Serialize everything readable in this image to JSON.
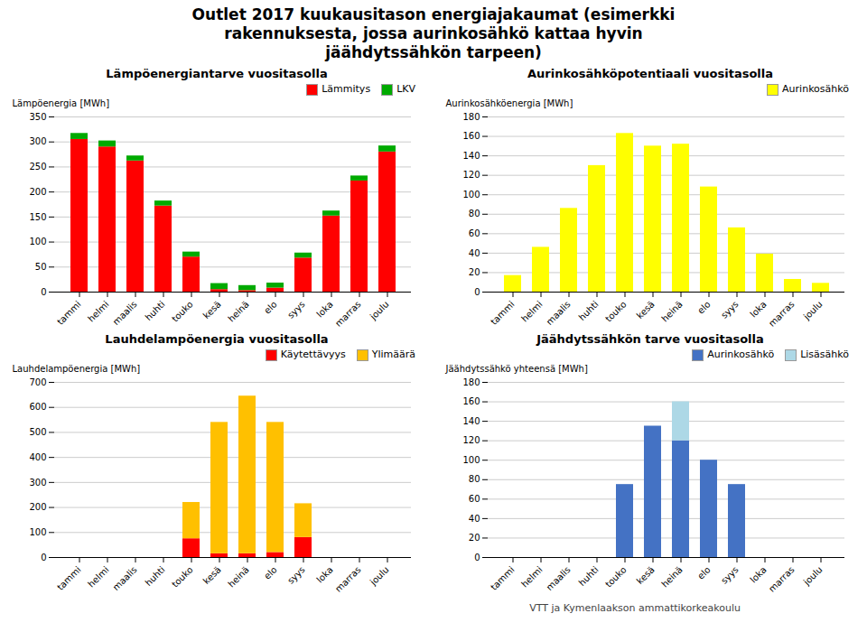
{
  "title": "Outlet 2017 kuukausitason energiajakaumat (esimerkki\nrakennuksesta, jossa aurinkosähkö kattaa hyvin\njäähdytssähkön tarpeen)",
  "caption": "VTT ja Kymenlaakson ammattikorkeakoulu",
  "chart_data": [
    {
      "type": "bar",
      "title": "Lämpöenergiantarve vuositasolla",
      "ylabel": "Lämpöenergia [MWh]",
      "categories": [
        "tammi",
        "helmi",
        "maalis",
        "huhti",
        "touko",
        "kesä",
        "heinä",
        "elo",
        "syys",
        "loka",
        "marras",
        "joulu"
      ],
      "series": [
        {
          "name": "Lämmitys",
          "color": "#FF0000",
          "values": [
            305,
            290,
            262,
            172,
            70,
            5,
            3,
            8,
            68,
            152,
            222,
            280
          ]
        },
        {
          "name": "LKV",
          "color": "#00AA00",
          "values": [
            12,
            12,
            10,
            10,
            10,
            12,
            10,
            10,
            10,
            10,
            10,
            12
          ]
        }
      ],
      "stacked": true,
      "ylim": [
        0,
        350
      ],
      "yticks": [
        0,
        50,
        100,
        150,
        200,
        250,
        300,
        350
      ],
      "grid": true,
      "legend": "upper right"
    },
    {
      "type": "bar",
      "title": "Aurinkosähköpotentiaali vuositasolla",
      "ylabel": "Aurinkosähköenergia [MWh]",
      "categories": [
        "tammi",
        "helmi",
        "maalis",
        "huhti",
        "touko",
        "kesä",
        "heinä",
        "elo",
        "syys",
        "loka",
        "marras",
        "joulu"
      ],
      "series": [
        {
          "name": "Aurinkosähkö",
          "color": "#FFFF00",
          "values": [
            17,
            46,
            86,
            130,
            163,
            150,
            152,
            108,
            66,
            39,
            13,
            9
          ]
        }
      ],
      "ylim": [
        0,
        180
      ],
      "yticks": [
        0,
        20,
        40,
        60,
        80,
        100,
        120,
        140,
        160,
        180
      ],
      "grid": true,
      "legend": "upper right"
    },
    {
      "type": "bar",
      "title": "Lauhdelampöenergia vuositasolla",
      "ylabel": "Lauhdelampöenergia [MWh]",
      "categories": [
        "tammi",
        "helmi",
        "maalis",
        "huhti",
        "touko",
        "kesä",
        "heinä",
        "elo",
        "syys",
        "loka",
        "marras",
        "joulu"
      ],
      "series": [
        {
          "name": "Käytettävyys",
          "color": "#FF0000",
          "values": [
            0,
            0,
            0,
            0,
            75,
            15,
            15,
            20,
            80,
            0,
            0,
            0
          ]
        },
        {
          "name": "Ylimäärä",
          "color": "#FFC000",
          "values": [
            0,
            0,
            0,
            0,
            145,
            525,
            630,
            520,
            135,
            0,
            0,
            0
          ]
        }
      ],
      "stacked": true,
      "ylim": [
        0,
        700
      ],
      "yticks": [
        0,
        100,
        200,
        300,
        400,
        500,
        600,
        700
      ],
      "grid": true,
      "legend": "upper right"
    },
    {
      "type": "bar",
      "title": "Jäähdytssähkön tarve vuositasolla",
      "ylabel": "Jäähdytssähkö yhteensä [MWh]",
      "categories": [
        "tammi",
        "helmi",
        "maalis",
        "huhti",
        "touko",
        "kesä",
        "heinä",
        "elo",
        "syys",
        "loka",
        "marras",
        "joulu"
      ],
      "series": [
        {
          "name": "Aurinkosähkö",
          "color": "#4472C4",
          "values": [
            0,
            0,
            0,
            0,
            75,
            135,
            120,
            100,
            75,
            0,
            0,
            0
          ]
        },
        {
          "name": "Lisäsähkö",
          "color": "#ADD8E6",
          "values": [
            0,
            0,
            0,
            0,
            0,
            0,
            40,
            0,
            0,
            0,
            0,
            0
          ]
        }
      ],
      "stacked": true,
      "ylim": [
        0,
        180
      ],
      "yticks": [
        0,
        20,
        40,
        60,
        80,
        100,
        120,
        140,
        160,
        180
      ],
      "grid": true,
      "legend": "upper right"
    }
  ]
}
